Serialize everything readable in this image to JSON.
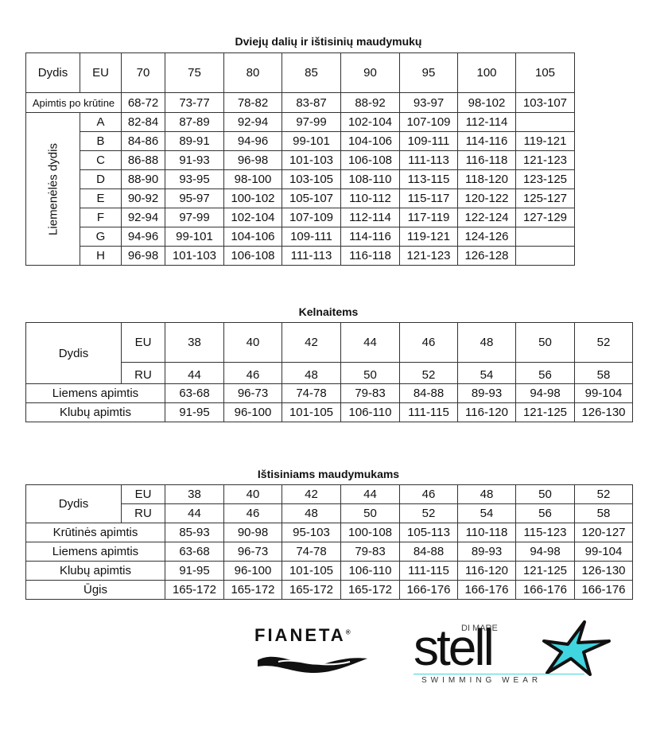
{
  "table1": {
    "title": "Dviejų dalių ir ištisinių maudymukų",
    "dydis_label": "Dydis",
    "eu_label": "EU",
    "sizes": [
      "70",
      "75",
      "80",
      "85",
      "90",
      "95",
      "100",
      "105"
    ],
    "underbust_label": "Apimtis po krūtine",
    "underbust": [
      "68-72",
      "73-77",
      "78-82",
      "83-87",
      "88-92",
      "93-97",
      "98-102",
      "103-107"
    ],
    "cup_group_label": "Liemenėlės dydis",
    "cups": [
      {
        "cup": "A",
        "values": [
          "82-84",
          "87-89",
          "92-94",
          "97-99",
          "102-104",
          "107-109",
          "112-114",
          ""
        ]
      },
      {
        "cup": "B",
        "values": [
          "84-86",
          "89-91",
          "94-96",
          "99-101",
          "104-106",
          "109-111",
          "114-116",
          "119-121"
        ]
      },
      {
        "cup": "C",
        "values": [
          "86-88",
          "91-93",
          "96-98",
          "101-103",
          "106-108",
          "111-113",
          "116-118",
          "121-123"
        ]
      },
      {
        "cup": "D",
        "values": [
          "88-90",
          "93-95",
          "98-100",
          "103-105",
          "108-110",
          "113-115",
          "118-120",
          "123-125"
        ]
      },
      {
        "cup": "E",
        "values": [
          "90-92",
          "95-97",
          "100-102",
          "105-107",
          "110-112",
          "115-117",
          "120-122",
          "125-127"
        ]
      },
      {
        "cup": "F",
        "values": [
          "92-94",
          "97-99",
          "102-104",
          "107-109",
          "112-114",
          "117-119",
          "122-124",
          "127-129"
        ]
      },
      {
        "cup": "G",
        "values": [
          "94-96",
          "99-101",
          "104-106",
          "109-111",
          "114-116",
          "119-121",
          "124-126",
          ""
        ]
      },
      {
        "cup": "H",
        "values": [
          "96-98",
          "101-103",
          "106-108",
          "111-113",
          "116-118",
          "121-123",
          "126-128",
          ""
        ]
      }
    ]
  },
  "table2": {
    "title": "Kelnaitems",
    "dydis_label": "Dydis",
    "eu_label": "EU",
    "ru_label": "RU",
    "eu": [
      "38",
      "40",
      "42",
      "44",
      "46",
      "48",
      "50",
      "52"
    ],
    "ru": [
      "44",
      "46",
      "48",
      "50",
      "52",
      "54",
      "56",
      "58"
    ],
    "rows": [
      {
        "label": "Liemens apimtis",
        "values": [
          "63-68",
          "96-73",
          "74-78",
          "79-83",
          "84-88",
          "89-93",
          "94-98",
          "99-104"
        ]
      },
      {
        "label": "Klubų apimtis",
        "values": [
          "91-95",
          "96-100",
          "101-105",
          "106-110",
          "111-115",
          "116-120",
          "121-125",
          "126-130"
        ]
      }
    ]
  },
  "table3": {
    "title": "Ištisiniams maudymukams",
    "dydis_label": "Dydis",
    "eu_label": "EU",
    "ru_label": "RU",
    "eu": [
      "38",
      "40",
      "42",
      "44",
      "46",
      "48",
      "50",
      "52"
    ],
    "ru": [
      "44",
      "46",
      "48",
      "50",
      "52",
      "54",
      "56",
      "58"
    ],
    "rows": [
      {
        "label": "Krūtinės apimtis",
        "values": [
          "85-93",
          "90-98",
          "95-103",
          "100-108",
          "105-113",
          "110-118",
          "115-123",
          "120-127"
        ]
      },
      {
        "label": "Liemens apimtis",
        "values": [
          "63-68",
          "96-73",
          "74-78",
          "79-83",
          "84-88",
          "89-93",
          "94-98",
          "99-104"
        ]
      },
      {
        "label": "Klubų apimtis",
        "values": [
          "91-95",
          "96-100",
          "101-105",
          "106-110",
          "111-115",
          "116-120",
          "121-125",
          "126-130"
        ]
      },
      {
        "label": "Ūgis",
        "values": [
          "165-172",
          "165-172",
          "165-172",
          "165-172",
          "166-176",
          "166-176",
          "166-176",
          "166-176"
        ]
      }
    ]
  },
  "logos": {
    "fianeta": "FIANETA",
    "stella_main": "stell",
    "stella_top": "DI MARE",
    "stella_sub": "SWIMMING WEAR",
    "accent": "#3fd6e0"
  }
}
